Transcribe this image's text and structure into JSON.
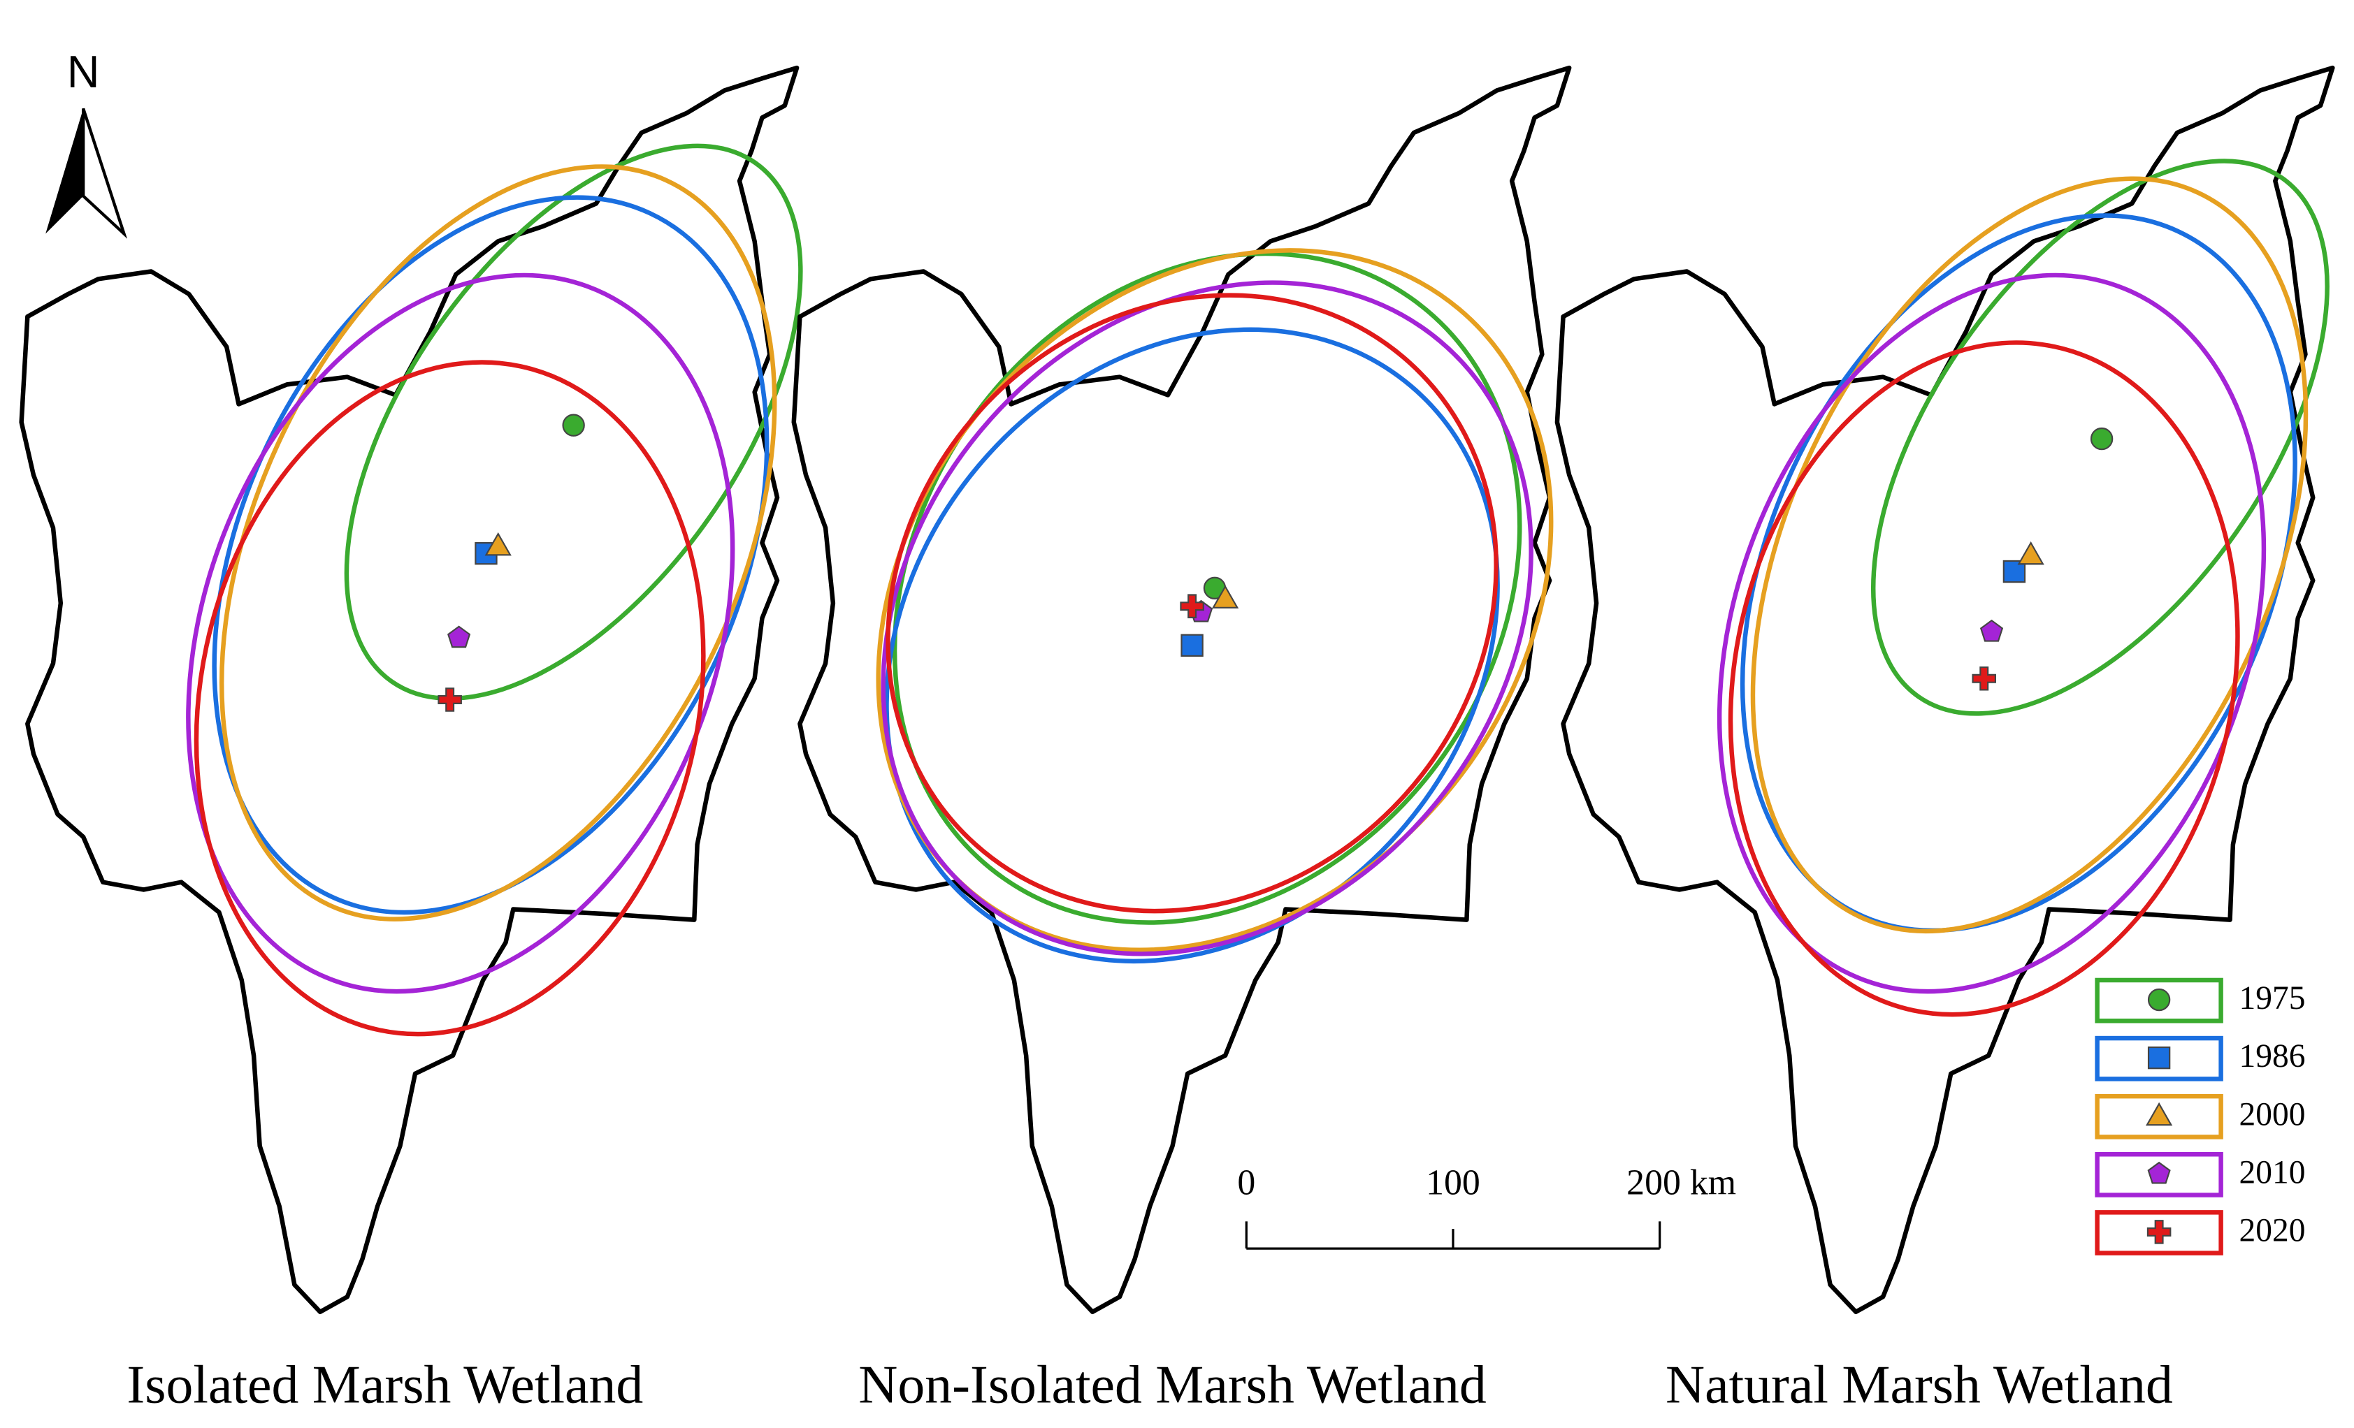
{
  "north": "N",
  "panels": [
    {
      "title": "Isolated Marsh Wetland"
    },
    {
      "title": "Non-Isolated Marsh Wetland"
    },
    {
      "title": "Natural Marsh Wetland"
    }
  ],
  "legend": [
    {
      "name": "1975",
      "color": "#3aab2f"
    },
    {
      "name": "1986",
      "color": "#1a6fe0"
    },
    {
      "name": "2000",
      "color": "#e6a020"
    },
    {
      "name": "2010",
      "color": "#a424d6"
    },
    {
      "name": "2020",
      "color": "#e01a1a"
    }
  ],
  "scale_bar": {
    "labels": [
      "0",
      "100",
      "200 km"
    ]
  }
}
